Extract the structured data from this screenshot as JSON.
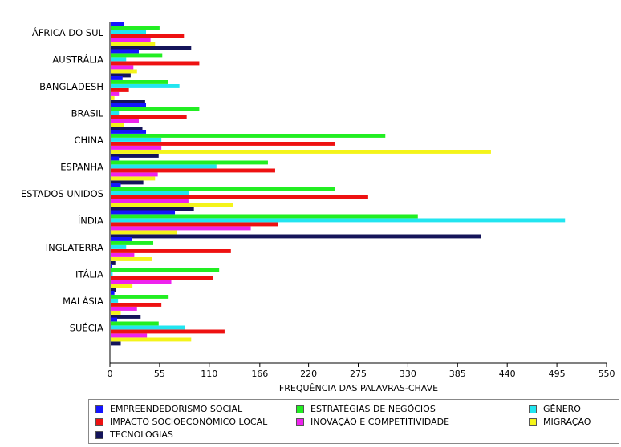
{
  "chart_data": {
    "type": "bar",
    "orientation": "horizontal",
    "title": "",
    "xlabel": "FREQUÊNCIA DAS PALAVRAS-CHAVE",
    "ylabel": "",
    "xlim": [
      0,
      550
    ],
    "x_ticks": [
      "0",
      "55",
      "110",
      "166",
      "220",
      "275",
      "330",
      "385",
      "440",
      "495",
      "550"
    ],
    "grid": false,
    "legend_position": "bottom",
    "categories": [
      "ÁFRICA DO SUL",
      "AUSTRÁLIA",
      "BANGLADESH",
      "BRASIL",
      "CHINA",
      "ESPANHA",
      "ESTADOS UNIDOS",
      "ÍNDIA",
      "INGLATERRA",
      "ITÁLIA",
      "MALÁSIA",
      "SUÉCIA"
    ],
    "series": [
      {
        "name": "EMPREENDEDORISMO SOCIAL",
        "color": "#1414ff",
        "values": [
          16,
          32,
          14,
          40,
          40,
          10,
          12,
          72,
          24,
          2,
          5,
          8
        ]
      },
      {
        "name": "ESTRATÉGIAS DE NEGÓCIOS",
        "color": "#22ee22",
        "values": [
          55,
          58,
          64,
          99,
          305,
          175,
          249,
          341,
          48,
          121,
          65,
          54
        ]
      },
      {
        "name": "GÊNERO",
        "color": "#22e5f0",
        "values": [
          40,
          18,
          77,
          10,
          57,
          118,
          88,
          504,
          18,
          3,
          9,
          83
        ]
      },
      {
        "name": "IMPACTO SOCIOECONÔMICO LOCAL",
        "color": "#ee1111",
        "values": [
          82,
          99,
          21,
          85,
          249,
          183,
          286,
          186,
          134,
          114,
          57,
          127
        ]
      },
      {
        "name": "INOVAÇÃO E COMPETITIVIDADE",
        "color": "#ee22ee",
        "values": [
          45,
          26,
          10,
          32,
          57,
          53,
          87,
          156,
          27,
          68,
          30,
          41
        ]
      },
      {
        "name": "MIGRAÇÃO",
        "color": "#f4f41a",
        "values": [
          50,
          30,
          5,
          16,
          422,
          50,
          136,
          74,
          47,
          25,
          12,
          90
        ]
      },
      {
        "name": "TECNOLOGIAS",
        "color": "#14145a",
        "values": [
          90,
          23,
          39,
          36,
          54,
          37,
          93,
          411,
          6,
          7,
          34,
          12
        ]
      }
    ]
  }
}
